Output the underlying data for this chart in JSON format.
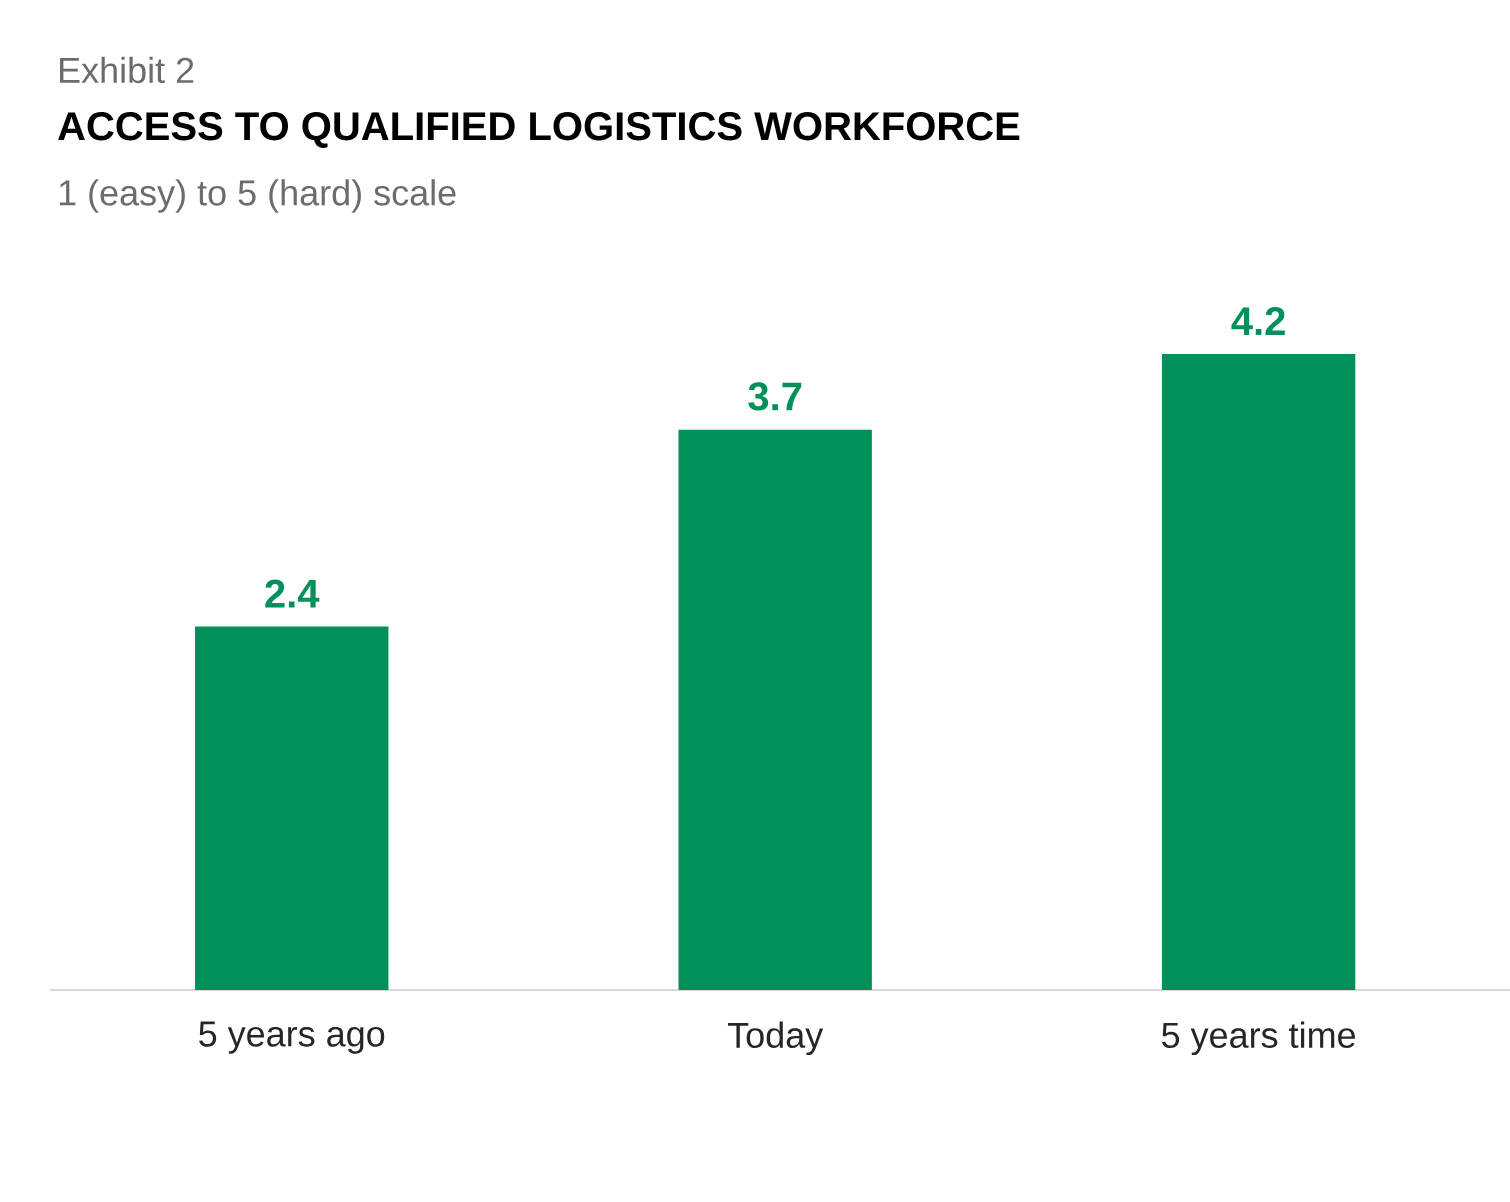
{
  "chart_data": {
    "type": "bar",
    "title": "ACCESS TO QUALIFIED LOGISTICS WORKFORCE",
    "subtitle": "1 (easy) to 5 (hard) scale",
    "annotations": [
      "Exhibit 2"
    ],
    "categories": [
      "5 years ago",
      "Today",
      "5 years time"
    ],
    "values": [
      2.4,
      3.7,
      4.2
    ],
    "color": "#00915a",
    "data_labels": true
  }
}
